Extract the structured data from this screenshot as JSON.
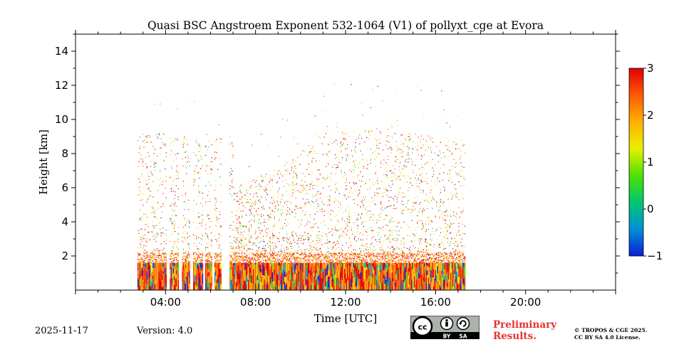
{
  "chart_data": {
    "type": "heatmap",
    "title": "Quasi BSC Angstroem Exponent 532-1064 (V1) of pollyxt_cge at Evora",
    "xlabel": "Time [UTC]",
    "ylabel": "Height [km]",
    "xlim": [
      0,
      24
    ],
    "ylim": [
      0,
      15
    ],
    "x_ticks": [
      4,
      8,
      12,
      16,
      20
    ],
    "x_tick_labels": [
      "04:00",
      "08:00",
      "12:00",
      "16:00",
      "20:00"
    ],
    "y_ticks": [
      2,
      4,
      6,
      8,
      10,
      12,
      14
    ],
    "y_tick_labels": [
      "2",
      "4",
      "6",
      "8",
      "10",
      "12",
      "14"
    ],
    "data_time_range": [
      2.75,
      17.3
    ],
    "colorbar": {
      "range": [
        -1,
        3
      ],
      "ticks": [
        -1,
        0,
        1,
        2,
        3
      ],
      "tick_labels": [
        "−1",
        "0",
        "1",
        "2",
        "3"
      ],
      "colors": [
        "#0a1fd8",
        "#0090d8",
        "#00c86e",
        "#4ee000",
        "#e8f000",
        "#ffb000",
        "#ff5a00",
        "#e00000"
      ]
    },
    "gaps": [
      [
        4.05,
        4.15
      ],
      [
        4.55,
        4.7
      ],
      [
        5.05,
        5.2
      ],
      [
        5.65,
        5.75
      ],
      [
        6.05,
        6.15
      ],
      [
        6.45,
        6.8
      ]
    ],
    "high_value_layer_km": [
      0.0,
      1.6
    ],
    "aerosol_top_km": 2.2
  },
  "footer": {
    "date": "2025-11-17",
    "version": "Version: 4.0",
    "preliminary_line1": "Preliminary",
    "preliminary_line2": "Results.",
    "copyright_line1": "© TROPOS & CGE 2025.",
    "copyright_line2": "CC BY SA 4.0 License."
  },
  "license_badge": {
    "cc": "cc",
    "by": "BY",
    "sa": "SA"
  }
}
